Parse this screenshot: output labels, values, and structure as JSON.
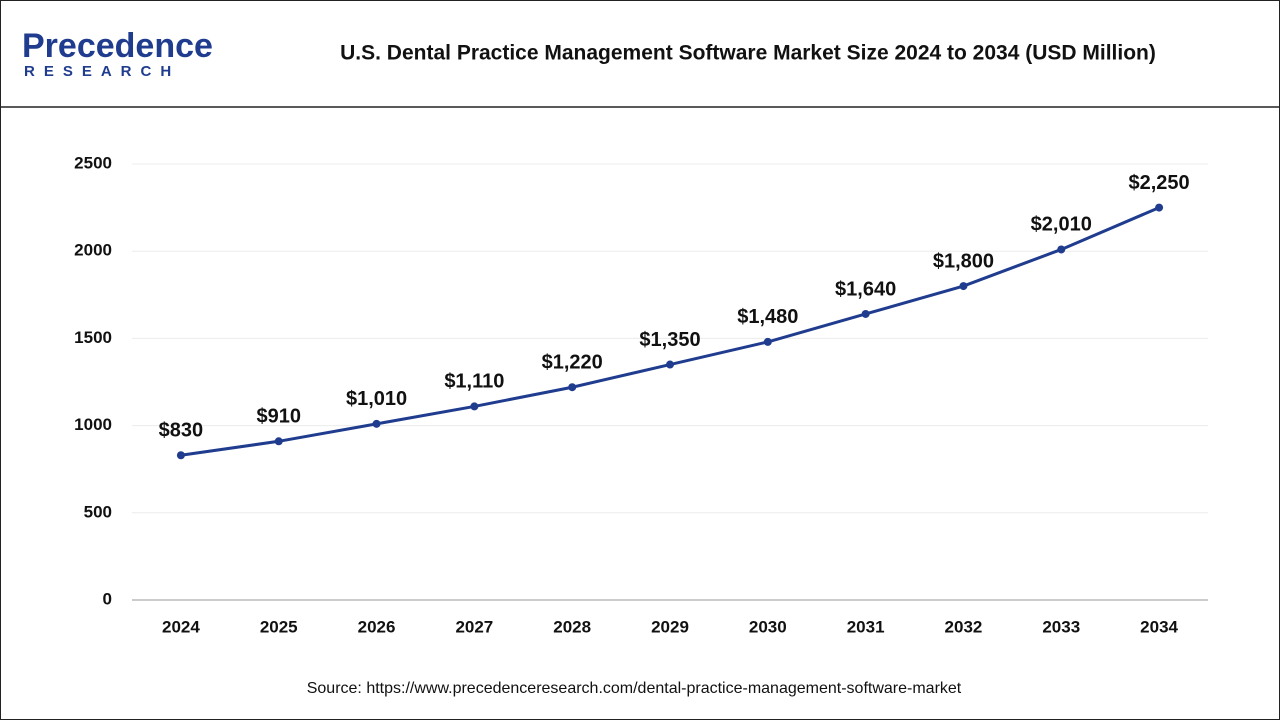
{
  "logo": {
    "name": "Precedence",
    "tagline": "RESEARCH"
  },
  "chart_data": {
    "type": "line",
    "title": "U.S. Dental Practice Management Software Market Size 2024 to 2034 (USD Million)",
    "categories": [
      "2024",
      "2025",
      "2026",
      "2027",
      "2028",
      "2029",
      "2030",
      "2031",
      "2032",
      "2033",
      "2034"
    ],
    "values": [
      830,
      910,
      1010,
      1110,
      1220,
      1350,
      1480,
      1640,
      1800,
      2010,
      2250
    ],
    "value_labels": [
      "$830",
      "$910",
      "$1,010",
      "$1,110",
      "$1,220",
      "$1,350",
      "$1,480",
      "$1,640",
      "$1,800",
      "$2,010",
      "$2,250"
    ],
    "color": "#1f3c8f",
    "ylim": [
      0,
      2500
    ],
    "yticks": [
      0,
      500,
      1000,
      1500,
      2000,
      2500
    ],
    "grid": true,
    "source": "Source: https://www.precedenceresearch.com/dental-practice-management-software-market"
  }
}
